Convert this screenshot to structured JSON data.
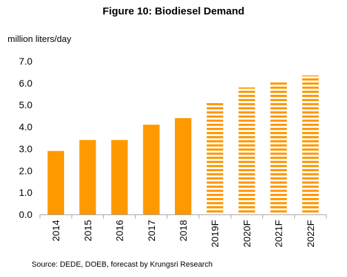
{
  "chart_data": {
    "type": "bar",
    "title": "Figure 10: Biodiesel Demand",
    "ylabel": "million liters/day",
    "xlabel": "",
    "categories": [
      "2014",
      "2015",
      "2016",
      "2017",
      "2018",
      "2019F",
      "2020F",
      "2021F",
      "2022F"
    ],
    "values": [
      2.9,
      3.4,
      3.4,
      4.1,
      4.4,
      5.1,
      5.8,
      6.1,
      6.35
    ],
    "forecast": [
      false,
      false,
      false,
      false,
      false,
      true,
      true,
      true,
      true
    ],
    "ylim": [
      0.0,
      7.0
    ],
    "yticks": [
      "0.0",
      "1.0",
      "2.0",
      "3.0",
      "4.0",
      "5.0",
      "6.0",
      "7.0"
    ],
    "grid": false,
    "legend": "none",
    "colors": {
      "bar": "#FF9900",
      "forecast_stripe": "#FF9900",
      "forecast_gap": "#FFFFFF",
      "axis": "#A6A6A6",
      "text": "#000000"
    }
  },
  "source": "Source: DEDE, DOEB, forecast by Krungsri Research"
}
